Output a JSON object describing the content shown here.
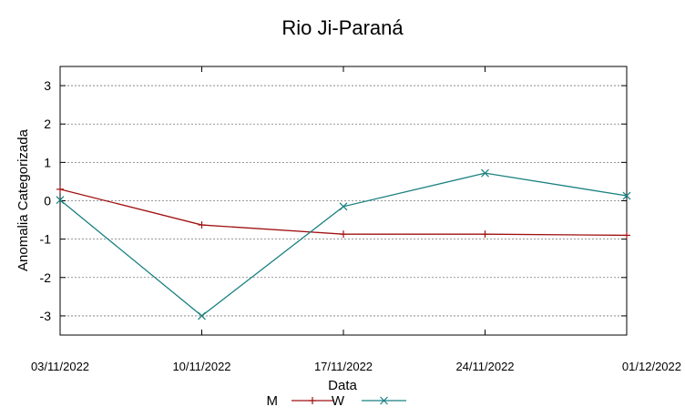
{
  "chart_data": {
    "type": "line",
    "title": "Rio Ji-Paraná",
    "xlabel": "Data",
    "ylabel": "Anomalia Categorizada",
    "x": [
      "03/11/2022",
      "10/11/2022",
      "17/11/2022",
      "24/11/2022",
      "01/12/2022"
    ],
    "ylim": [
      -3.5,
      3.5
    ],
    "yticks": [
      "-3",
      "-2",
      "-1",
      "0",
      "1",
      "2",
      "3"
    ],
    "grid": "horizontal dashed",
    "legend_position": "bottom",
    "series": [
      {
        "name": "M",
        "color": "#a01010",
        "marker": "plus",
        "values": [
          0.3,
          -0.63,
          -0.87,
          -0.87,
          -0.9
        ]
      },
      {
        "name": "W",
        "color": "#1a8080",
        "marker": "cross",
        "values": [
          0.02,
          -3.0,
          -0.15,
          0.72,
          0.13
        ]
      }
    ]
  }
}
